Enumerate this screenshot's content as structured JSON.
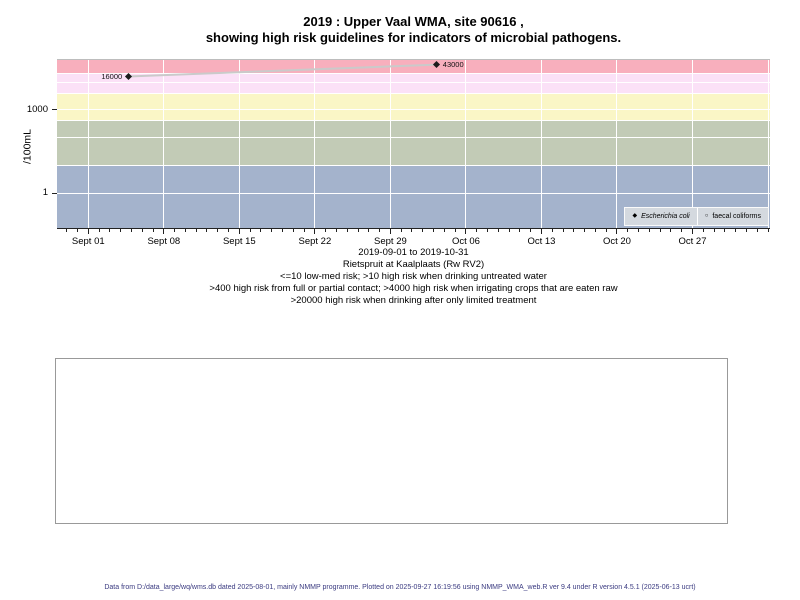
{
  "title": {
    "line1": "2019 : Upper Vaal WMA, site 90616 ,",
    "line2": "showing high risk guidelines for indicators of microbial pathogens."
  },
  "chart_data": {
    "type": "line",
    "title": "2019 : Upper Vaal WMA, site 90616 , showing high risk guidelines for indicators of microbial pathogens.",
    "ylabel": "/100mL",
    "y_scale": "log10",
    "y_range": [
      0.055,
      63000
    ],
    "x_range_days": [
      -2.9,
      63.18
    ],
    "x_axis_start_date": "2019-09-01",
    "y_ticks": [
      {
        "value": 1000,
        "label": "1000"
      },
      {
        "value": 1,
        "label": "1"
      }
    ],
    "x_ticks": [
      {
        "day": 0,
        "label": "Sept 01"
      },
      {
        "day": 7,
        "label": "Sept 08"
      },
      {
        "day": 14,
        "label": "Sept 15"
      },
      {
        "day": 21,
        "label": "Sept 22"
      },
      {
        "day": 28,
        "label": "Sept 29"
      },
      {
        "day": 35,
        "label": "Oct 06"
      },
      {
        "day": 42,
        "label": "Oct 13"
      },
      {
        "day": 49,
        "label": "Oct 20"
      },
      {
        "day": 56,
        "label": "Oct 27"
      }
    ],
    "v_gridline_days": [
      0,
      7,
      14,
      21,
      28,
      35,
      42,
      49,
      56,
      63
    ],
    "h_gridlines": [
      1,
      10,
      100,
      400,
      1000,
      4000,
      10000,
      20000
    ],
    "bands": [
      {
        "risk": "low-med risk (<=10)",
        "from": 0.055,
        "to": 10,
        "color": "#A4B3CC"
      },
      {
        "risk": ">10 high risk when drinking untreated water",
        "from": 10,
        "to": 400,
        "color": "#C2CBB6"
      },
      {
        "risk": ">400 high risk from full or partial contact",
        "from": 400,
        "to": 4000,
        "color": "#FAF6C6"
      },
      {
        "risk": ">4000 high risk when irrigating crops eaten raw",
        "from": 4000,
        "to": 20000,
        "color": "#FBE1F7"
      },
      {
        "risk": ">20000 high risk drinking after limited treatment",
        "from": 20000,
        "to": 63000,
        "color": "#F8AFBD"
      }
    ],
    "series": [
      {
        "name": "Escherichia coli",
        "marker": "filled-diamond",
        "marker_color": "#1c1c1c",
        "line_color": "#cacaca",
        "points": [
          {
            "day": 3.7,
            "value": 16000,
            "label": "16000",
            "label_side": "left"
          },
          {
            "day": 32.3,
            "value": 43000,
            "label": "43000",
            "label_side": "right"
          }
        ]
      },
      {
        "name": "faecal coliforms",
        "marker": "open-circle",
        "marker_color": "#1c1c1c",
        "line_color": "#cacaca",
        "points": []
      }
    ],
    "legend": {
      "position": "bottom-right",
      "bg_color": "#d4d9df",
      "entries": [
        {
          "marker": "◆",
          "label": "Escherichia coli",
          "italic": true
        },
        {
          "marker": "○",
          "label": "faecal coliforms",
          "italic": false
        }
      ]
    }
  },
  "caption": {
    "lines": [
      "2019-09-01 to 2019-10-31",
      "Rietspruit at Kaalplaats (Rw RV2)",
      "<=10 low-med risk; >10 high risk when drinking untreated water",
      ">400 high risk from full or partial contact; >4000 high risk when irrigating crops that are eaten raw",
      ">20000 high risk when drinking after only limited treatment"
    ]
  },
  "footer": {
    "text": "Data from D:/data_large/wq/wms.db dated 2025-08-01, mainly NMMP programme. Plotted on 2025-09-27 16:19:56 using NMMP_WMA_web.R ver 9.4 under R version 4.5.1 (2025-06-13 ucrt)"
  }
}
